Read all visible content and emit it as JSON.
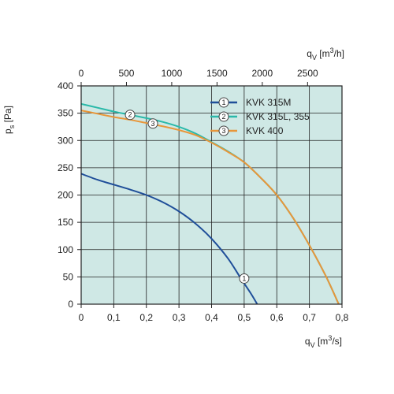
{
  "chart_data": {
    "type": "line",
    "x_bottom": {
      "label_main": "q",
      "label_sub": "V",
      "label_unit_pre": "[m",
      "label_unit_sup": "3",
      "label_unit_post": "/s]",
      "range": [
        0,
        0.8
      ],
      "ticks": [
        0,
        0.1,
        0.2,
        0.3,
        0.4,
        0.5,
        0.6,
        0.7,
        0.8
      ],
      "tick_labels": [
        "0",
        "0,1",
        "0,2",
        "0,3",
        "0,4",
        "0,5",
        "0,6",
        "0,7",
        "0,8"
      ]
    },
    "x_top": {
      "label_main": "q",
      "label_sub": "V",
      "label_unit_pre": "[m",
      "label_unit_sup": "3",
      "label_unit_post": "/h]",
      "range": [
        0,
        2880
      ],
      "ticks": [
        0,
        500,
        1000,
        1500,
        2000,
        2500
      ],
      "tick_labels": [
        "0",
        "500",
        "1000",
        "1500",
        "2000",
        "2500"
      ]
    },
    "y": {
      "label_main": "p",
      "label_sub": "s",
      "label_unit": "[Pa]",
      "range": [
        0,
        400
      ],
      "ticks": [
        0,
        50,
        100,
        150,
        200,
        250,
        300,
        350,
        400
      ],
      "tick_labels": [
        "0",
        "50",
        "100",
        "150",
        "200",
        "250",
        "300",
        "350",
        "400"
      ]
    },
    "grid": true,
    "legend_position": "top-right",
    "series": [
      {
        "name": "KVK 315M",
        "marker": "1",
        "color": "#1f4e99",
        "x": [
          0,
          0.05,
          0.1,
          0.15,
          0.2,
          0.25,
          0.3,
          0.35,
          0.4,
          0.45,
          0.49,
          0.52,
          0.54
        ],
        "y": [
          239,
          228,
          219,
          210,
          200,
          187,
          170,
          148,
          120,
          84,
          47,
          20,
          0
        ],
        "marker_at": [
          0.5,
          47
        ]
      },
      {
        "name": "KVK 315L, 355",
        "marker": "2",
        "color": "#2ab9a9",
        "x": [
          0,
          0.05,
          0.1,
          0.15,
          0.2,
          0.25,
          0.3,
          0.35,
          0.4,
          0.45,
          0.5,
          0.55,
          0.6,
          0.65,
          0.7,
          0.75,
          0.79
        ],
        "y": [
          367,
          360,
          353,
          347,
          341,
          334,
          325,
          313,
          297,
          280,
          260,
          232,
          200,
          158,
          108,
          52,
          0
        ],
        "marker_at": [
          0.15,
          347
        ]
      },
      {
        "name": "KVK 400",
        "marker": "3",
        "color": "#e8963a",
        "x": [
          0,
          0.05,
          0.1,
          0.15,
          0.2,
          0.25,
          0.3,
          0.35,
          0.4,
          0.45,
          0.5,
          0.55,
          0.6,
          0.65,
          0.7,
          0.75,
          0.79
        ],
        "y": [
          355,
          349,
          343,
          338,
          332,
          326,
          319,
          310,
          296,
          279,
          260,
          232,
          200,
          158,
          108,
          52,
          0
        ],
        "marker_at": [
          0.22,
          331
        ]
      }
    ],
    "colors": {
      "plot_background": "#cfe8e5",
      "grid": "#222222",
      "frame": "#222222"
    }
  }
}
